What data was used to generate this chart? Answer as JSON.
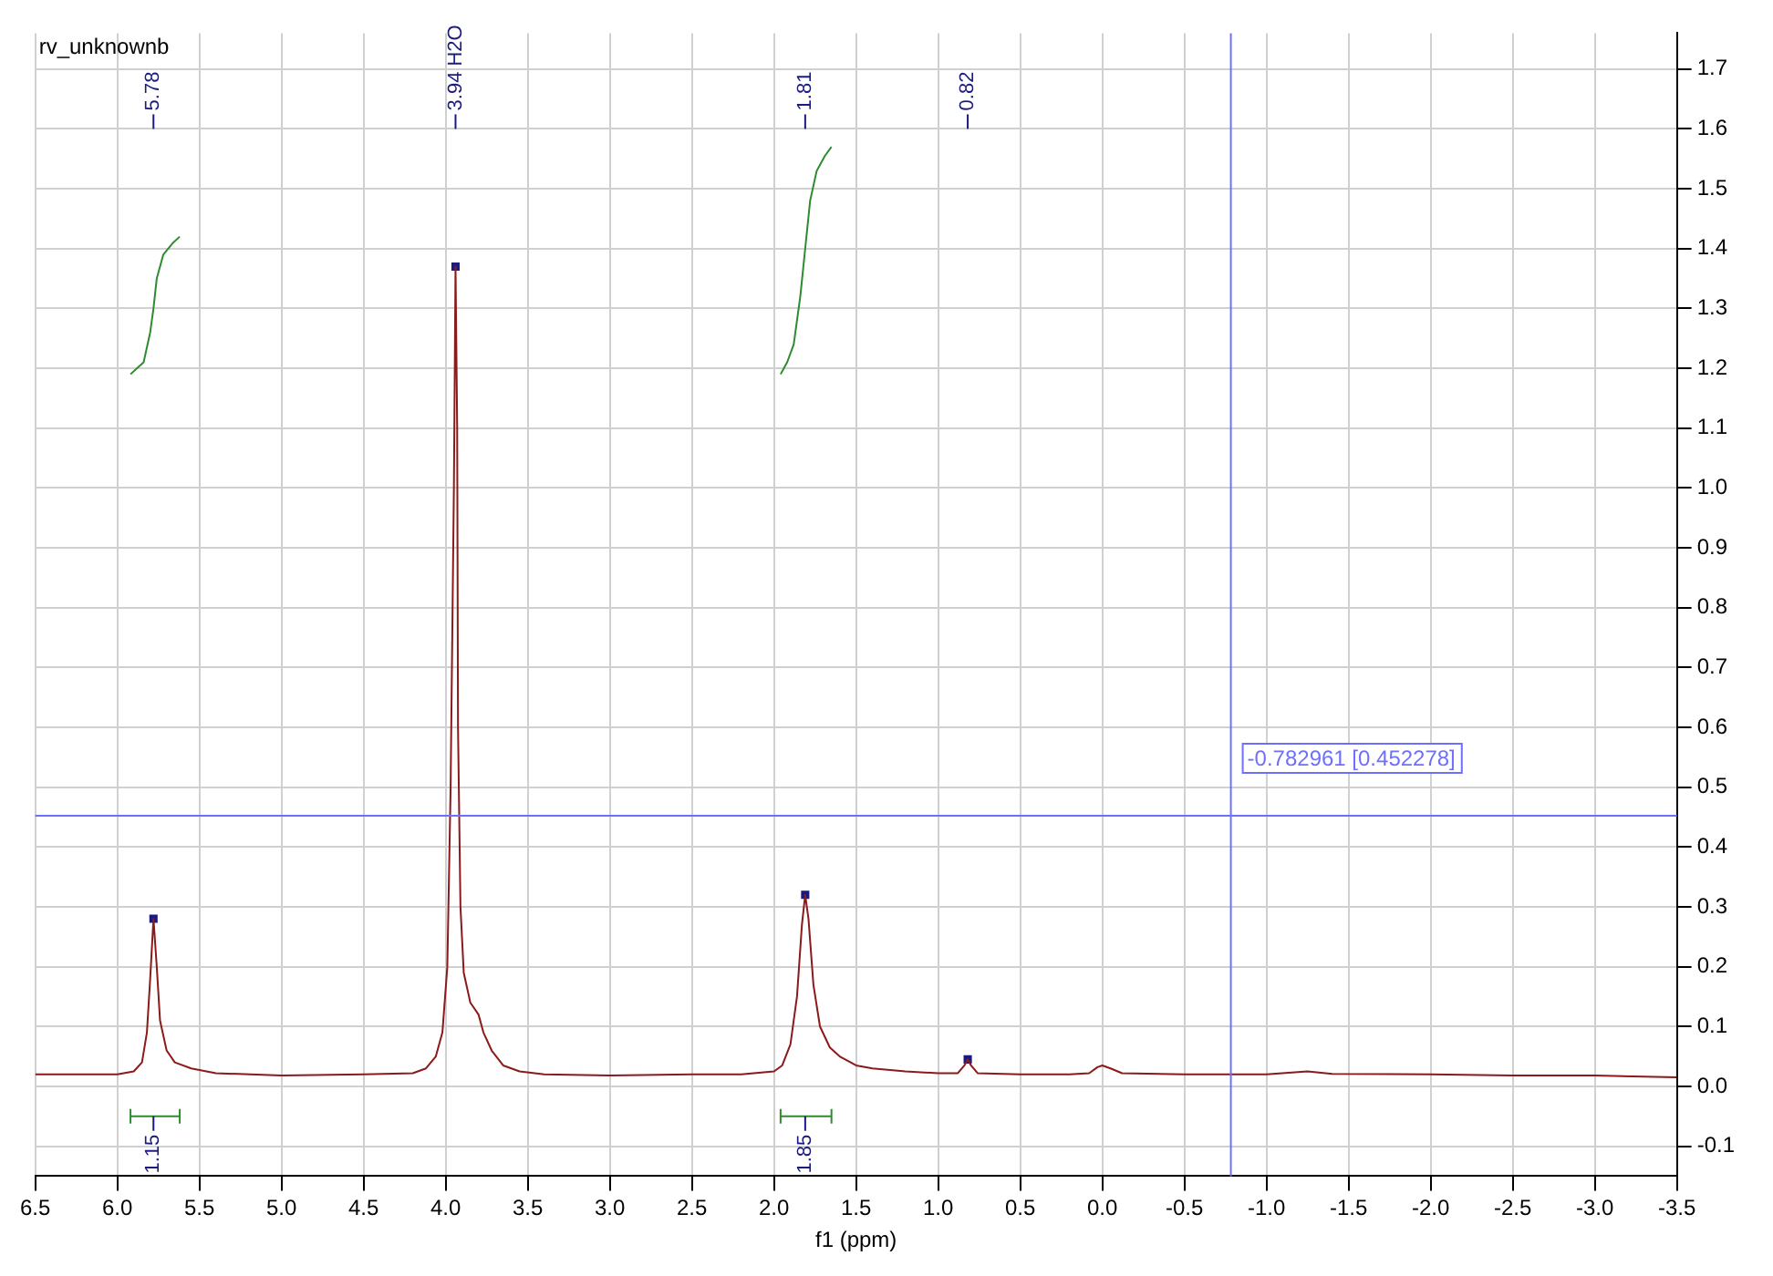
{
  "chart_data": {
    "type": "line",
    "title": "rv_unknownb",
    "xlabel": "f1 (ppm)",
    "xlim": [
      6.5,
      -3.5
    ],
    "ylim": [
      -0.15,
      1.76
    ],
    "xticks": [
      6.5,
      {
        "value": 6,
        "label": "6.0"
      },
      5.5,
      {
        "value": 5,
        "label": "5.0"
      },
      4.5,
      {
        "value": 4,
        "label": "4.0"
      },
      3.5,
      {
        "value": 3,
        "label": "3.0"
      },
      2.5,
      {
        "value": 2,
        "label": "2.0"
      },
      1.5,
      {
        "value": 1,
        "label": "1.0"
      },
      0.5,
      {
        "value": 0,
        "label": "0.0"
      },
      -0.5,
      {
        "value": -1,
        "label": "-1.0"
      },
      -1.5,
      {
        "value": -2,
        "label": "-2.0"
      },
      -2.5,
      {
        "value": -3,
        "label": "-3.0"
      },
      -3.5
    ],
    "yticks": [
      -0.1,
      {
        "value": 0,
        "label": "0.0"
      },
      0.1,
      0.2,
      0.3,
      0.4,
      0.5,
      0.6,
      0.7,
      0.8,
      0.9,
      {
        "value": 1,
        "label": "1.0"
      },
      1.1,
      1.2,
      1.3,
      1.4,
      1.5,
      1.6,
      1.7
    ],
    "grid": true,
    "legend": false,
    "line_style": "solid",
    "series": [
      {
        "color": "#8b1a1a",
        "x": [
          6.5,
          6.2,
          6.0,
          5.9,
          5.85,
          5.82,
          5.8,
          5.78,
          5.76,
          5.74,
          5.7,
          5.65,
          5.55,
          5.4,
          5.0,
          4.5,
          4.2,
          4.12,
          4.06,
          4.02,
          3.99,
          3.97,
          3.95,
          3.94,
          3.93,
          3.925,
          3.91,
          3.89,
          3.85,
          3.8,
          3.77,
          3.72,
          3.65,
          3.55,
          3.4,
          3.0,
          2.5,
          2.2,
          2.0,
          1.95,
          1.9,
          1.86,
          1.83,
          1.81,
          1.79,
          1.76,
          1.72,
          1.66,
          1.6,
          1.5,
          1.4,
          1.2,
          1.0,
          0.88,
          0.84,
          0.82,
          0.8,
          0.76,
          0.5,
          0.2,
          0.08,
          0.03,
          0.0,
          -0.05,
          -0.12,
          -0.5,
          -1.0,
          -1.25,
          -1.4,
          -2.0,
          -2.5,
          -3.0,
          -3.5
        ],
        "values": [
          0.02,
          0.02,
          0.02,
          0.025,
          0.04,
          0.09,
          0.18,
          0.28,
          0.2,
          0.11,
          0.06,
          0.04,
          0.03,
          0.022,
          0.018,
          0.02,
          0.022,
          0.03,
          0.05,
          0.09,
          0.2,
          0.5,
          1.0,
          1.37,
          1.1,
          0.6,
          0.3,
          0.19,
          0.14,
          0.12,
          0.09,
          0.06,
          0.035,
          0.025,
          0.02,
          0.018,
          0.02,
          0.02,
          0.025,
          0.035,
          0.07,
          0.15,
          0.27,
          0.32,
          0.28,
          0.17,
          0.1,
          0.065,
          0.05,
          0.035,
          0.03,
          0.025,
          0.022,
          0.022,
          0.035,
          0.045,
          0.035,
          0.022,
          0.02,
          0.02,
          0.022,
          0.032,
          0.035,
          0.03,
          0.022,
          0.02,
          0.02,
          0.025,
          0.021,
          0.02,
          0.018,
          0.018,
          0.015
        ]
      },
      {
        "color": "#2e8b2e",
        "x": [
          5.92,
          5.88,
          5.84,
          5.8,
          5.78,
          5.76,
          5.72,
          5.66,
          5.62
        ],
        "values": [
          1.19,
          1.2,
          1.21,
          1.26,
          1.3,
          1.35,
          1.39,
          1.41,
          1.42
        ]
      },
      {
        "color": "#2e8b2e",
        "x": [
          1.96,
          1.92,
          1.88,
          1.84,
          1.81,
          1.78,
          1.74,
          1.69,
          1.65
        ],
        "values": [
          1.19,
          1.21,
          1.24,
          1.32,
          1.4,
          1.48,
          1.53,
          1.555,
          1.57
        ]
      },
      {
        "type": "scatter",
        "color": "#1a1a80",
        "x": [
          5.78,
          3.94,
          1.81,
          0.82
        ],
        "values": [
          0.28,
          1.37,
          0.32,
          0.045
        ]
      }
    ],
    "ref_lines": [
      {
        "axis": "x",
        "value": -0.782961,
        "label": "-0.782961 [0.452278]",
        "color": "#6f6fff"
      },
      {
        "axis": "y",
        "value": 0.452278,
        "color": "#6f6fff"
      }
    ],
    "annotations": [
      "5.78",
      "3.94 H2O",
      "1.81",
      "0.82",
      "1.15",
      "1.85"
    ]
  }
}
